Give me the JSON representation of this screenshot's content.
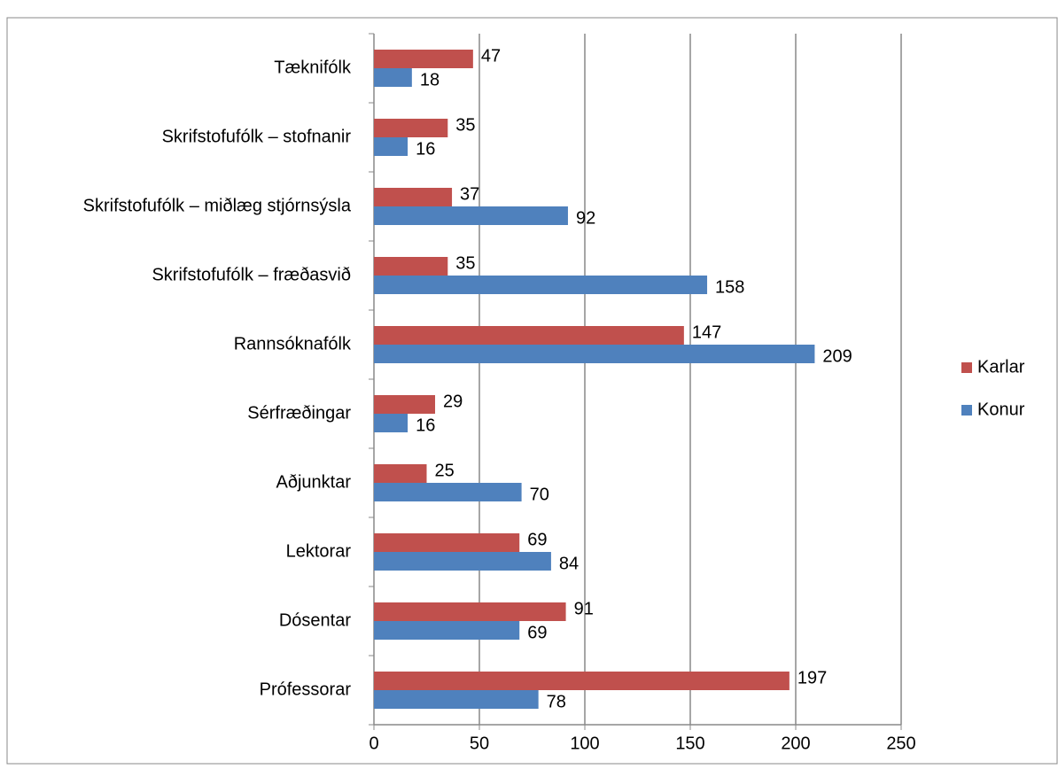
{
  "chart_data": {
    "type": "hbar",
    "categories": [
      "Tæknifólk",
      "Skrifstofufólk – stofnanir",
      "Skrifstofufólk – miðlæg stjórnsýsla",
      "Skrifstofufólk – fræðasvið",
      "Rannsóknafólk",
      "Sérfræðingar",
      "Aðjunktar",
      "Lektorar",
      "Dósentar",
      "Prófessorar"
    ],
    "series": [
      {
        "name": "Karlar",
        "color": "#c0504d",
        "values": [
          47,
          35,
          37,
          35,
          147,
          29,
          25,
          69,
          91,
          197
        ]
      },
      {
        "name": "Konur",
        "color": "#4f81bd",
        "values": [
          18,
          16,
          92,
          158,
          209,
          16,
          70,
          84,
          69,
          78
        ]
      }
    ],
    "xlim": [
      0,
      250
    ],
    "xticks": [
      0,
      50,
      100,
      150,
      200,
      250
    ],
    "grid": true,
    "legend": "right"
  }
}
